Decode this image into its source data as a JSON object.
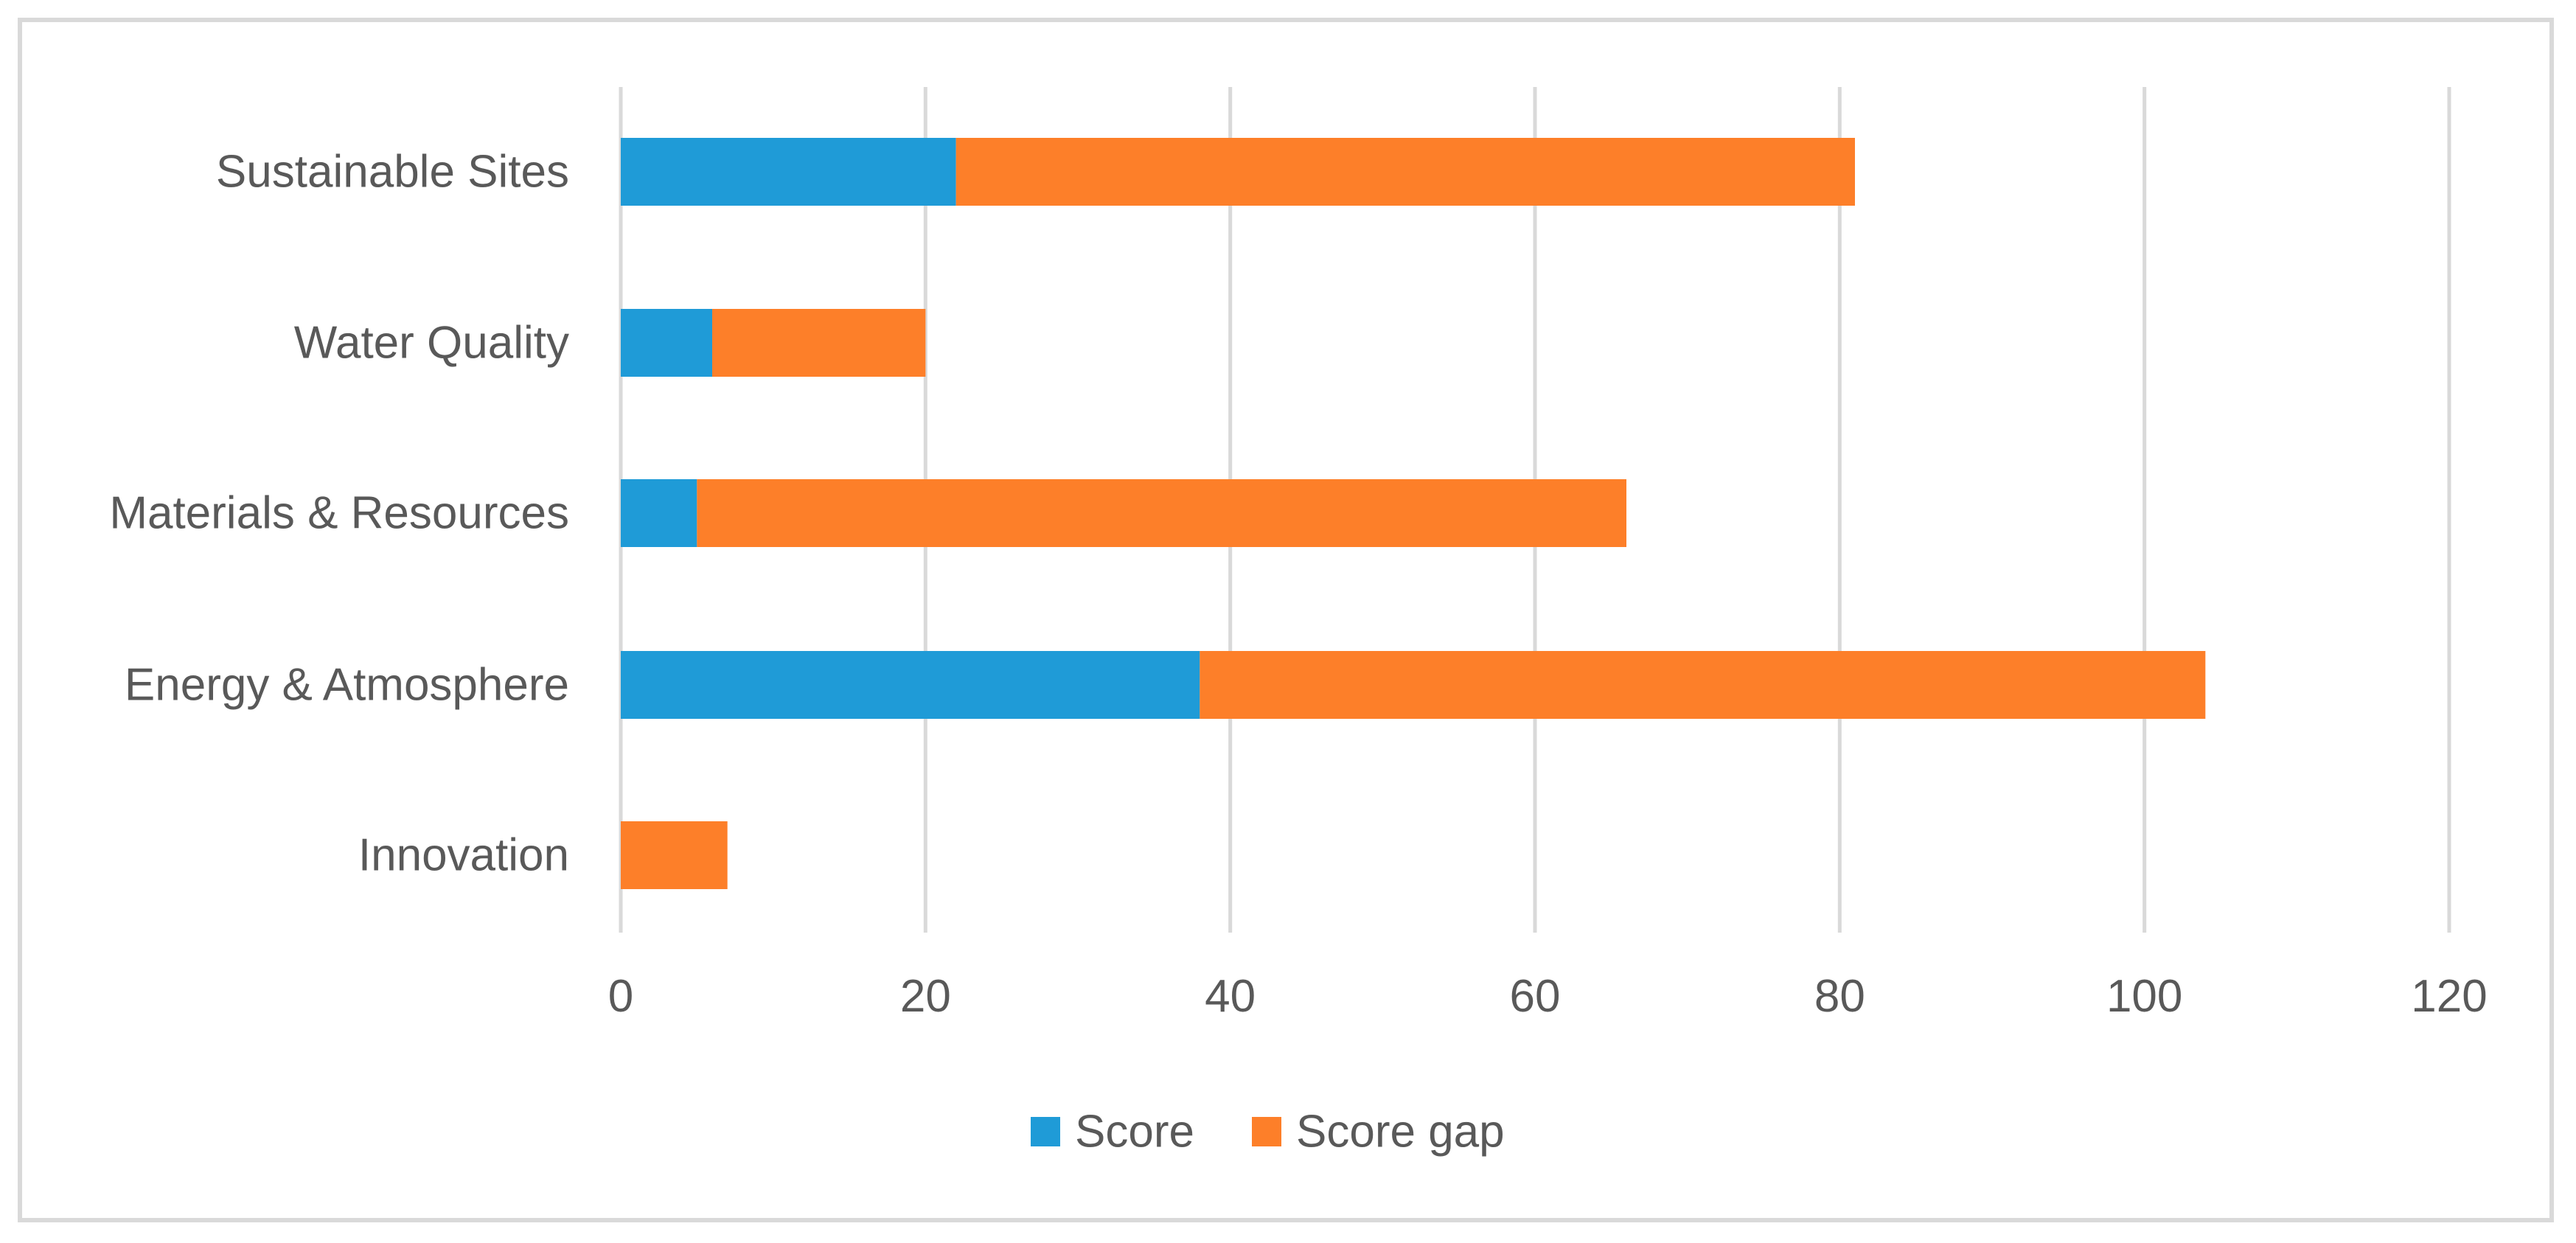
{
  "chart_data": {
    "type": "bar",
    "orientation": "horizontal",
    "stacked": true,
    "categories": [
      "Sustainable Sites",
      "Water Quality",
      "Materials & Resources",
      "Energy & Atmosphere",
      "Innovation"
    ],
    "series": [
      {
        "name": "Score",
        "values": [
          22,
          6,
          5,
          38,
          0
        ],
        "color": "#1f9bd7"
      },
      {
        "name": "Score gap",
        "values": [
          59,
          14,
          61,
          66,
          7
        ],
        "color": "#fd7f29"
      }
    ],
    "xlim": [
      0,
      120
    ],
    "xticks": [
      "0",
      "20",
      "40",
      "60",
      "80",
      "100",
      "120"
    ],
    "xtick_values": [
      0,
      20,
      40,
      60,
      80,
      100,
      120
    ],
    "grid": true,
    "gridline_color": "#d9d9d9",
    "legend_position": "bottom",
    "title": "",
    "xlabel": "",
    "ylabel": ""
  }
}
